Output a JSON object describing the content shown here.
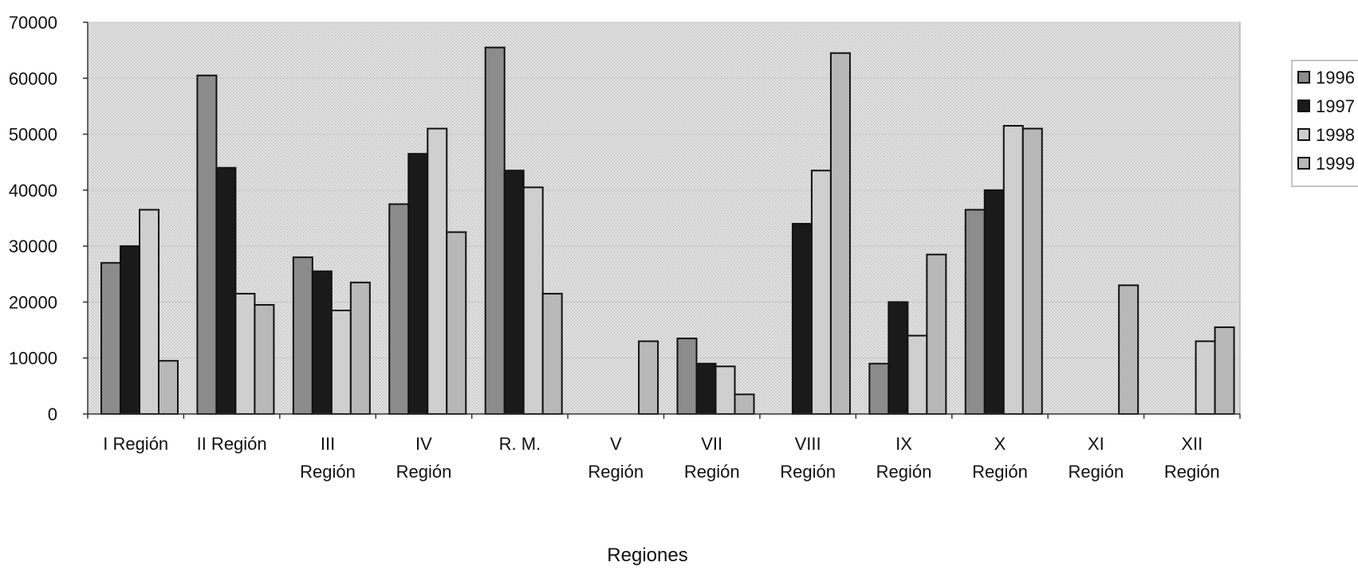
{
  "chart_data": {
    "type": "bar",
    "title": "",
    "xlabel": "Regiones",
    "ylabel": "",
    "ylim": [
      0,
      70000
    ],
    "yticks": [
      0,
      10000,
      20000,
      30000,
      40000,
      50000,
      60000,
      70000
    ],
    "grid": true,
    "legend_position": "right",
    "categories": [
      [
        "I Región"
      ],
      [
        "II Región"
      ],
      [
        "III",
        "Región"
      ],
      [
        "IV",
        "Región"
      ],
      [
        "R. M."
      ],
      [
        "V",
        "Región"
      ],
      [
        "VII",
        "Región"
      ],
      [
        "VIII",
        "Región"
      ],
      [
        "IX",
        "Región"
      ],
      [
        "X",
        "Región"
      ],
      [
        "XI",
        "Región"
      ],
      [
        "XII",
        "Región"
      ]
    ],
    "series": [
      {
        "name": "1996",
        "color": "#8c8c8c",
        "values": [
          27000,
          60500,
          28000,
          37500,
          65500,
          null,
          13500,
          null,
          9000,
          36500,
          null,
          null
        ]
      },
      {
        "name": "1997",
        "color": "#1a1a1a",
        "values": [
          30000,
          44000,
          25500,
          46500,
          43500,
          null,
          9000,
          34000,
          20000,
          40000,
          null,
          null
        ]
      },
      {
        "name": "1998",
        "color": "#cfcfcf",
        "values": [
          36500,
          21500,
          18500,
          51000,
          40500,
          null,
          8500,
          43500,
          14000,
          51500,
          null,
          13000
        ]
      },
      {
        "name": "1999",
        "color": "#b8b8b8",
        "values": [
          9500,
          19500,
          23500,
          32500,
          21500,
          13000,
          3500,
          64500,
          28500,
          51000,
          23000,
          15500
        ]
      }
    ]
  }
}
